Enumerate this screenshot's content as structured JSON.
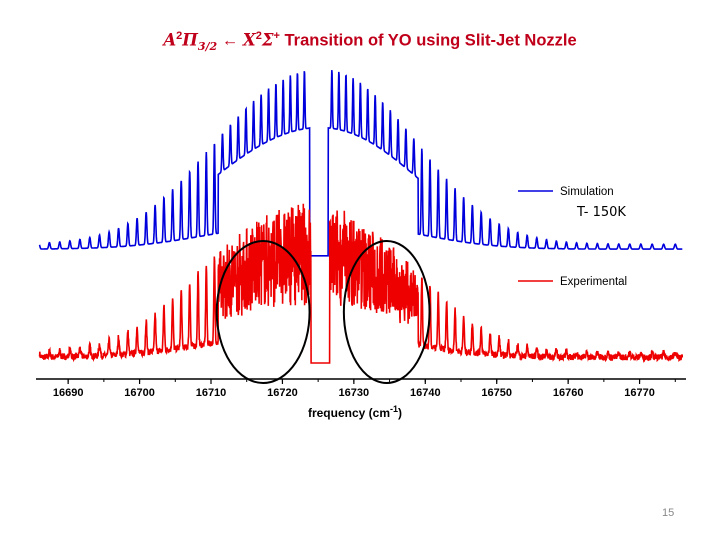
{
  "slide": {
    "title_lhs_state": "A",
    "title_lhs_superscript": "2",
    "title_lhs_term": "Π",
    "title_lhs_subscript": "3/2",
    "title_arrow": "←",
    "title_rhs_state": "X",
    "title_rhs_superscript": "2",
    "title_rhs_term": "Σ",
    "title_rhs_term_superscript": "+",
    "title_text": "Transition of YO using Slit-Jet Nozzle",
    "temperature_label": "T- 150K",
    "slide_number": "15",
    "title_color": "#c0001a"
  },
  "chart_data": {
    "type": "line",
    "xlabel": "frequency  (cm",
    "xlabel_superscript": "-1",
    "xlabel_close": ")",
    "x_ticks": [
      16690,
      16700,
      16710,
      16720,
      16730,
      16740,
      16750,
      16760,
      16770
    ],
    "xlim": [
      16685.5,
      16776.5
    ],
    "y_axis_shown": false,
    "legend_placement": "right",
    "series": [
      {
        "name": "Simulation",
        "color": "#0000dd",
        "baseline_offset": 1.0,
        "description_of_shape": "stick spectrum convolved lineshape",
        "band_edges": [
          16686,
          16776
        ],
        "gap": [
          16723.8,
          16726.4
        ],
        "envelope_peaks": [
          {
            "center": 16716.5,
            "height": 0.72
          },
          {
            "center": 16731.2,
            "height": 0.86
          }
        ]
      },
      {
        "name": "Experimental",
        "color": "#ee0000",
        "baseline_offset": 0.0,
        "band_edges": [
          16686,
          16776
        ],
        "gap": [
          16724.0,
          16726.6
        ],
        "envelope_peaks": [
          {
            "center": 16716.0,
            "height": 0.78
          },
          {
            "center": 16731.0,
            "height": 0.8
          }
        ]
      }
    ],
    "annotations": [
      {
        "type": "ellipse",
        "x_center": 16717.3,
        "x_halfwidth": 6.5,
        "note": "circled region"
      },
      {
        "type": "ellipse",
        "x_center": 16734.6,
        "x_halfwidth": 6.0,
        "note": "circled region"
      }
    ]
  }
}
